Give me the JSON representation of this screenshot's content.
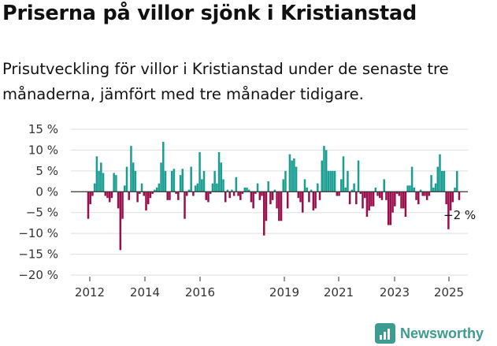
{
  "title": "Priserna på villor sjönk i Kristianstad",
  "subtitle": "Prisutveckling för villor i Kristianstad under de senaste tre månaderna, jämfört med tre månader tidigare.",
  "brand": "Newsworthy",
  "colors": {
    "positive": "#1a9e91",
    "negative": "#9a0e4c",
    "grid": "#dddddd",
    "axis": "#333333"
  },
  "chart_data": {
    "type": "bar",
    "xlabel": "",
    "ylabel": "",
    "ylim": [
      -20,
      15
    ],
    "yticks": [
      15,
      10,
      5,
      0,
      -5,
      -10,
      -15,
      -20
    ],
    "ytick_labels": [
      "15 %",
      "10 %",
      "5 %",
      "0 %",
      "−5 %",
      "−10 %",
      "−15 %",
      "−20 %"
    ],
    "xticks": [
      "2012",
      "2014",
      "2016",
      "2019",
      "2021",
      "2023",
      "2025"
    ],
    "annotation": {
      "text": "−2 %",
      "value": -2
    },
    "grid": true,
    "series": [
      {
        "values": [
          -6.5,
          -3,
          -1,
          2,
          8.5,
          5,
          7,
          4.5,
          -1,
          -1.5,
          -2.5,
          -1.5,
          4.5,
          4,
          -4,
          -14,
          -6.5,
          1.5,
          6,
          -2,
          11,
          7,
          5,
          -2.5,
          -0.5,
          2,
          -1,
          -4.5,
          -3,
          -1.5,
          -0.5,
          0.5,
          1,
          2,
          7,
          12,
          5,
          -2,
          -2,
          5,
          5.5,
          -0.5,
          -2,
          4,
          5.5,
          -6.5,
          -1,
          0.5,
          6,
          -1,
          1.5,
          2,
          9.5,
          3,
          5,
          -2,
          -2.5,
          -0.5,
          2,
          5,
          2,
          9.5,
          7,
          3,
          -2.5,
          0.5,
          -1.5,
          0.5,
          -1,
          3.5,
          -1,
          -2,
          -0.5,
          1,
          1,
          0.5,
          -2.5,
          -4,
          -0.5,
          2,
          -2,
          -1,
          -10.5,
          -7,
          2.5,
          -3,
          -2,
          0.5,
          -4,
          -7,
          -7,
          3,
          5,
          -4,
          9,
          7.5,
          8,
          6,
          -1.5,
          -2.5,
          -5,
          3,
          1,
          -2.5,
          0.5,
          -4.5,
          -4,
          2,
          -2,
          7.5,
          11,
          10,
          5,
          5,
          5,
          5,
          -1,
          -1,
          3,
          8.5,
          1,
          5,
          -3,
          0.5,
          2,
          -3,
          7.5,
          -0.5,
          -4,
          -1.5,
          -6,
          -4.5,
          -3.5,
          -3.5,
          1,
          -1,
          -1.5,
          -2,
          3,
          -2,
          -8,
          -8,
          -5,
          -3.5,
          -0.5,
          -1,
          -4,
          -4,
          -6,
          1.5,
          1.5,
          6,
          1,
          -2,
          -3,
          0.5,
          -1,
          -1,
          -2,
          -1,
          4,
          1,
          2,
          6,
          9,
          5,
          5,
          -3,
          -9,
          -4.5,
          -2.5,
          1,
          5,
          -2
        ]
      }
    ]
  }
}
